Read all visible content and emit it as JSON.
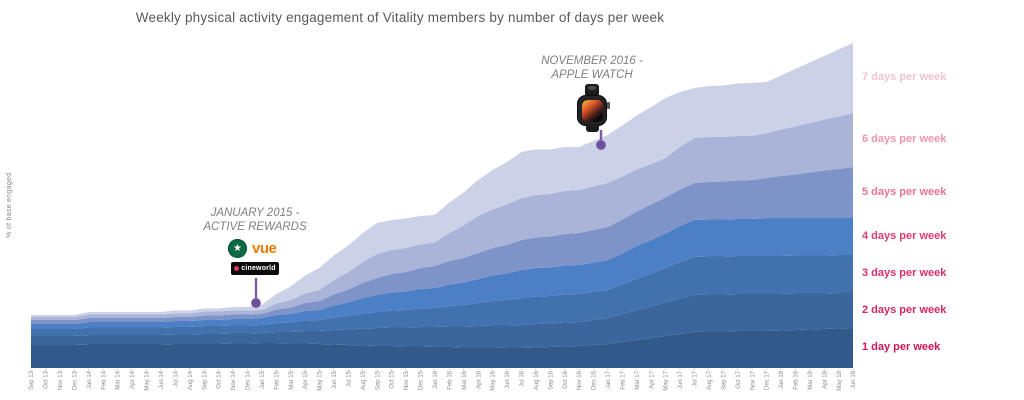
{
  "title": "Weekly physical activity engagement of Vitality members by number of days per week",
  "y_axis_label": "% of base engaged",
  "annotations": {
    "active_rewards": {
      "line1": "JANUARY 2015 -",
      "line2": "ACTIVE REWARDS",
      "starbucks_icon": "starbucks-siren-logo",
      "vue_text": "vue",
      "cineworld_text": "cineworld"
    },
    "apple_watch": {
      "line1": "NOVEMBER 2016 -",
      "line2": "APPLE WATCH",
      "watch_icon": "apple-watch-image"
    }
  },
  "chart_data": {
    "type": "area",
    "stacked": true,
    "title": "Weekly physical activity engagement of Vitality members by number of days per week",
    "xlabel": "",
    "ylabel": "% of base engaged",
    "ylim": [
      0,
      66
    ],
    "grid": false,
    "legend_position": "right-band-labels",
    "x": [
      "Sep 13",
      "Oct 13",
      "Nov 13",
      "Dec 13",
      "Jan 14",
      "Feb 14",
      "Mar 14",
      "Apr 14",
      "May 14",
      "Jun 14",
      "Jul 14",
      "Aug 14",
      "Sep 14",
      "Oct 14",
      "Nov 14",
      "Dec 14",
      "Jan 15",
      "Feb 15",
      "Mar 15",
      "Apr 15",
      "May 15",
      "Jun 15",
      "Jul 15",
      "Aug 15",
      "Sep 15",
      "Oct 15",
      "Nov 15",
      "Dec 15",
      "Jan 16",
      "Feb 16",
      "Mar 16",
      "Apr 16",
      "May 16",
      "Jun 16",
      "Jul 16",
      "Aug 16",
      "Sep 16",
      "Oct 16",
      "Nov 16",
      "Dec 16",
      "Jan 17",
      "Feb 17",
      "Mar 17",
      "Apr 17",
      "May 17",
      "Jun 17",
      "Jul 17",
      "Aug 17",
      "Sep 17",
      "Oct 17",
      "Nov 17",
      "Dec 17",
      "Jan 18",
      "Feb 18",
      "Mar 18",
      "Apr 18",
      "May 18",
      "Jun 18"
    ],
    "series": [
      {
        "name": "1 day per week",
        "color": "#315a8a",
        "label_color": "#d2145c",
        "values": [
          4.6,
          4.6,
          4.6,
          4.6,
          4.7,
          4.7,
          4.7,
          4.7,
          4.7,
          4.7,
          4.8,
          4.8,
          4.8,
          4.8,
          4.9,
          4.9,
          5.0,
          5.0,
          4.9,
          4.9,
          4.8,
          4.7,
          4.6,
          4.5,
          4.4,
          4.4,
          4.3,
          4.3,
          4.2,
          4.2,
          4.1,
          4.1,
          4.1,
          4.0,
          4.0,
          4.1,
          4.2,
          4.3,
          4.4,
          4.6,
          4.8,
          5.2,
          5.6,
          6.0,
          6.4,
          6.8,
          7.2,
          7.3,
          7.3,
          7.4,
          7.4,
          7.4,
          7.5,
          7.6,
          7.7,
          7.8,
          7.9,
          8.0
        ]
      },
      {
        "name": "2 days per week",
        "color": "#3a669c",
        "label_color": "#d72763",
        "values": [
          1.8,
          1.8,
          1.8,
          1.8,
          1.9,
          1.9,
          1.9,
          1.9,
          1.9,
          1.9,
          1.9,
          1.9,
          2.0,
          2.0,
          2.0,
          2.0,
          2.0,
          2.2,
          2.3,
          2.5,
          2.6,
          2.9,
          3.1,
          3.4,
          3.6,
          3.7,
          3.8,
          3.9,
          4.0,
          4.1,
          4.2,
          4.3,
          4.4,
          4.5,
          4.6,
          4.7,
          4.7,
          4.8,
          4.8,
          5.0,
          5.2,
          5.6,
          6.0,
          6.3,
          6.7,
          7.1,
          7.4,
          7.4,
          7.4,
          7.4,
          7.4,
          7.4,
          7.3,
          7.3,
          7.2,
          7.1,
          7.1,
          7.0
        ]
      },
      {
        "name": "3 days per week",
        "color": "#4272ad",
        "label_color": "#dc3067",
        "values": [
          1.4,
          1.4,
          1.4,
          1.4,
          1.5,
          1.5,
          1.5,
          1.5,
          1.5,
          1.5,
          1.5,
          1.5,
          1.6,
          1.6,
          1.6,
          1.6,
          1.6,
          1.8,
          1.9,
          2.1,
          2.2,
          2.5,
          2.7,
          3.0,
          3.2,
          3.4,
          3.5,
          3.7,
          3.8,
          4.1,
          4.3,
          4.6,
          4.9,
          5.1,
          5.4,
          5.5,
          5.5,
          5.6,
          5.6,
          5.6,
          5.6,
          5.9,
          6.3,
          6.6,
          6.9,
          7.3,
          7.6,
          7.6,
          7.6,
          7.6,
          7.6,
          7.6,
          7.6,
          7.6,
          7.6,
          7.6,
          7.6,
          7.6
        ]
      },
      {
        "name": "4 days per week",
        "color": "#4c80c6",
        "label_color": "#e13a6d",
        "values": [
          1.0,
          1.0,
          1.0,
          1.0,
          1.1,
          1.1,
          1.1,
          1.1,
          1.1,
          1.1,
          1.2,
          1.2,
          1.2,
          1.2,
          1.3,
          1.3,
          1.4,
          1.6,
          1.7,
          1.9,
          2.0,
          2.4,
          2.7,
          3.1,
          3.4,
          3.6,
          3.7,
          3.9,
          4.0,
          4.3,
          4.5,
          4.8,
          5.1,
          5.3,
          5.6,
          5.7,
          5.7,
          5.8,
          5.8,
          5.9,
          6.0,
          6.2,
          6.5,
          6.7,
          6.9,
          7.2,
          7.4,
          7.4,
          7.4,
          7.4,
          7.4,
          7.6,
          7.6,
          7.5,
          7.5,
          7.5,
          7.4,
          7.4
        ]
      },
      {
        "name": "5 days per week",
        "color": "#7e94c8",
        "label_color": "#ed7293",
        "values": [
          0.8,
          0.8,
          0.8,
          0.8,
          0.8,
          0.8,
          0.8,
          0.8,
          0.8,
          0.8,
          0.8,
          0.8,
          0.9,
          0.9,
          0.9,
          0.9,
          0.8,
          1.1,
          1.3,
          1.6,
          1.8,
          2.2,
          2.6,
          3.0,
          3.4,
          3.7,
          3.9,
          4.2,
          4.4,
          4.7,
          4.9,
          5.2,
          5.5,
          5.7,
          6.0,
          6.1,
          6.2,
          6.3,
          6.4,
          6.5,
          6.6,
          6.8,
          6.9,
          7.1,
          7.2,
          7.3,
          7.4,
          7.5,
          7.6,
          7.7,
          7.8,
          8.0,
          8.4,
          8.7,
          9.1,
          9.5,
          9.8,
          10.2
        ]
      },
      {
        "name": "6 days per week",
        "color": "#a9b4d8",
        "label_color": "#f096ac",
        "values": [
          0.6,
          0.6,
          0.6,
          0.6,
          0.7,
          0.7,
          0.7,
          0.7,
          0.7,
          0.7,
          0.7,
          0.7,
          0.8,
          0.8,
          0.8,
          0.8,
          0.8,
          1.2,
          1.5,
          1.9,
          2.2,
          2.9,
          3.5,
          4.2,
          4.8,
          4.8,
          4.8,
          4.7,
          4.7,
          5.6,
          6.5,
          7.4,
          7.7,
          8.1,
          8.4,
          8.5,
          8.5,
          8.6,
          8.6,
          8.7,
          8.8,
          8.6,
          8.4,
          8.1,
          7.9,
          8.5,
          9.0,
          9.0,
          8.9,
          8.9,
          8.8,
          9.0,
          9.3,
          9.6,
          9.9,
          10.2,
          10.5,
          10.8
        ]
      },
      {
        "name": "7 days per week",
        "color": "#cbd2e7",
        "label_color": "#f2c3cf",
        "values": [
          0.4,
          0.4,
          0.4,
          0.4,
          0.5,
          0.5,
          0.5,
          0.5,
          0.5,
          0.5,
          0.6,
          0.6,
          0.6,
          0.6,
          0.7,
          0.7,
          1.0,
          1.9,
          2.7,
          3.6,
          4.4,
          4.9,
          5.3,
          5.8,
          6.2,
          6.0,
          5.9,
          5.7,
          5.5,
          6.1,
          6.6,
          7.2,
          7.9,
          8.5,
          9.2,
          9.1,
          8.9,
          8.8,
          8.6,
          9.1,
          9.6,
          10.2,
          10.8,
          11.4,
          12.0,
          11.0,
          10.0,
          10.2,
          10.3,
          10.5,
          10.6,
          10.2,
          10.8,
          11.5,
          12.1,
          12.7,
          13.4,
          14.0
        ]
      }
    ],
    "markers": [
      {
        "label": "JANUARY 2015 - ACTIVE REWARDS",
        "x": "Jan 15"
      },
      {
        "label": "NOVEMBER 2016 - APPLE WATCH",
        "x": "Nov 16"
      }
    ]
  }
}
